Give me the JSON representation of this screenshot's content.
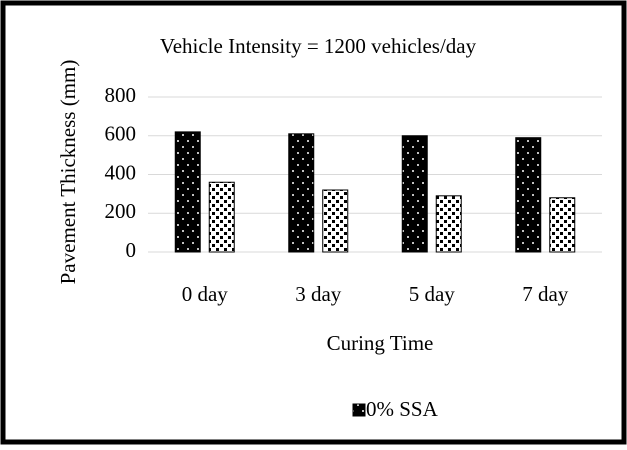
{
  "chart_data": {
    "type": "bar",
    "title": "Vehicle Intensity = 1200 vehicles/day",
    "x_label": "Curing Time",
    "y_label": "Pavement Thickness (mm)",
    "categories": [
      "0 day",
      "3 day",
      "5 day",
      "7 day"
    ],
    "series": [
      {
        "name": "0% SSA",
        "color": "#000000",
        "values": [
          620,
          610,
          600,
          590
        ]
      },
      {
        "color": "#ffffff",
        "values": [
          360,
          320,
          290,
          280
        ]
      }
    ],
    "ylim": [
      0,
      800
    ],
    "yticks": [
      0,
      200,
      400,
      600,
      800
    ],
    "grid": true,
    "legend": "bottom"
  }
}
